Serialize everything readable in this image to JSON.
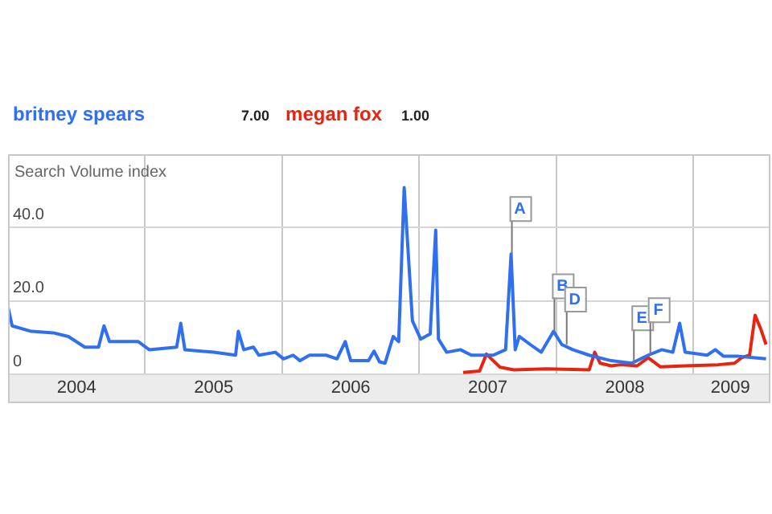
{
  "chart_data": {
    "type": "line",
    "ylabel": "Search Volume index",
    "legend": "top left",
    "grid": true,
    "marker": "none",
    "xlim": [
      2004.0,
      2009.55
    ],
    "xticks": [
      {
        "value": 2004.5,
        "label": "2004"
      },
      {
        "value": 2005.5,
        "label": "2005"
      },
      {
        "value": 2006.5,
        "label": "2006"
      },
      {
        "value": 2007.5,
        "label": "2007"
      },
      {
        "value": 2008.5,
        "label": "2008"
      },
      {
        "value": 2009.27,
        "label": "2009"
      },
      {
        "value": 2005,
        "label": null
      },
      {
        "value": 2006,
        "label": null
      },
      {
        "value": 2007,
        "label": null
      },
      {
        "value": 2008,
        "label": null
      },
      {
        "value": 2009,
        "label": null
      }
    ],
    "ylim": [
      0,
      60
    ],
    "yticks": [
      0,
      {
        "value": 20,
        "label": "20.0"
      },
      {
        "value": 40,
        "label": "40.0"
      }
    ],
    "annotations": [
      {
        "text": "A",
        "x": 2007.67,
        "y": 32.8
      },
      {
        "text": "B",
        "x": 2007.98,
        "y": 11.7
      },
      {
        "text": "D",
        "x": 2008.07,
        "y": 8.1
      },
      {
        "text": "E",
        "x": 2008.56,
        "y": 3.0
      },
      {
        "text": "F",
        "x": 2008.68,
        "y": 5.2
      },
      "7.00",
      "1.00"
    ],
    "series": [
      {
        "name": "britney spears",
        "color": "#2f6ff0",
        "x": [
          2004.0,
          2004.03,
          2004.17,
          2004.33,
          2004.44,
          2004.56,
          2004.66,
          2004.7,
          2004.74,
          2004.84,
          2004.95,
          2005.03,
          2005.23,
          2005.26,
          2005.29,
          2005.5,
          2005.66,
          2005.68,
          2005.72,
          2005.79,
          2005.83,
          2005.95,
          2006.01,
          2006.08,
          2006.13,
          2006.2,
          2006.32,
          2006.4,
          2006.46,
          2006.5,
          2006.63,
          2006.67,
          2006.71,
          2006.75,
          2006.81,
          2006.85,
          2006.89,
          2006.95,
          2007.01,
          2007.08,
          2007.12,
          2007.14,
          2007.2,
          2007.3,
          2007.38,
          2007.54,
          2007.63,
          2007.67,
          2007.7,
          2007.73,
          2007.81,
          2007.89,
          2007.98,
          2008.04,
          2008.12,
          2008.24,
          2008.4,
          2008.55,
          2008.67,
          2008.77,
          2008.85,
          2008.9,
          2008.94,
          2009.1,
          2009.16,
          2009.22,
          2009.33,
          2009.45,
          2009.53
        ],
        "values": [
          18.3,
          13.2,
          11.7,
          11.3,
          10.3,
          7.4,
          7.4,
          13.2,
          8.9,
          8.9,
          8.9,
          6.7,
          7.4,
          13.9,
          6.7,
          6.0,
          5.2,
          11.7,
          6.7,
          7.4,
          5.2,
          6.0,
          4.2,
          5.2,
          3.7,
          5.2,
          5.2,
          4.2,
          8.9,
          3.7,
          3.7,
          6.3,
          3.4,
          3.0,
          10.3,
          8.9,
          50.9,
          14.6,
          9.6,
          11.0,
          39.3,
          9.6,
          6.0,
          6.7,
          5.2,
          5.2,
          6.7,
          32.8,
          6.7,
          10.3,
          8.1,
          6.0,
          11.7,
          8.1,
          6.7,
          5.2,
          3.7,
          3.0,
          5.2,
          6.7,
          6.0,
          13.9,
          6.0,
          5.2,
          6.7,
          4.9,
          4.9,
          4.5,
          4.2
        ]
      },
      {
        "name": "megan fox",
        "color": "#e8230f",
        "x": [
          2007.32,
          2007.44,
          2007.49,
          2007.54,
          2007.59,
          2007.69,
          2007.93,
          2008.24,
          2008.28,
          2008.32,
          2008.4,
          2008.47,
          2008.59,
          2008.67,
          2008.76,
          2008.94,
          2009.18,
          2009.3,
          2009.35,
          2009.41,
          2009.45,
          2009.49,
          2009.53
        ],
        "values": [
          0.5,
          0.9,
          5.5,
          3.7,
          1.9,
          1.2,
          1.5,
          1.2,
          6.0,
          3.0,
          2.3,
          2.6,
          2.3,
          4.5,
          2.0,
          2.3,
          2.6,
          3.0,
          4.5,
          5.2,
          16.1,
          12.5,
          8.1
        ]
      }
    ]
  }
}
